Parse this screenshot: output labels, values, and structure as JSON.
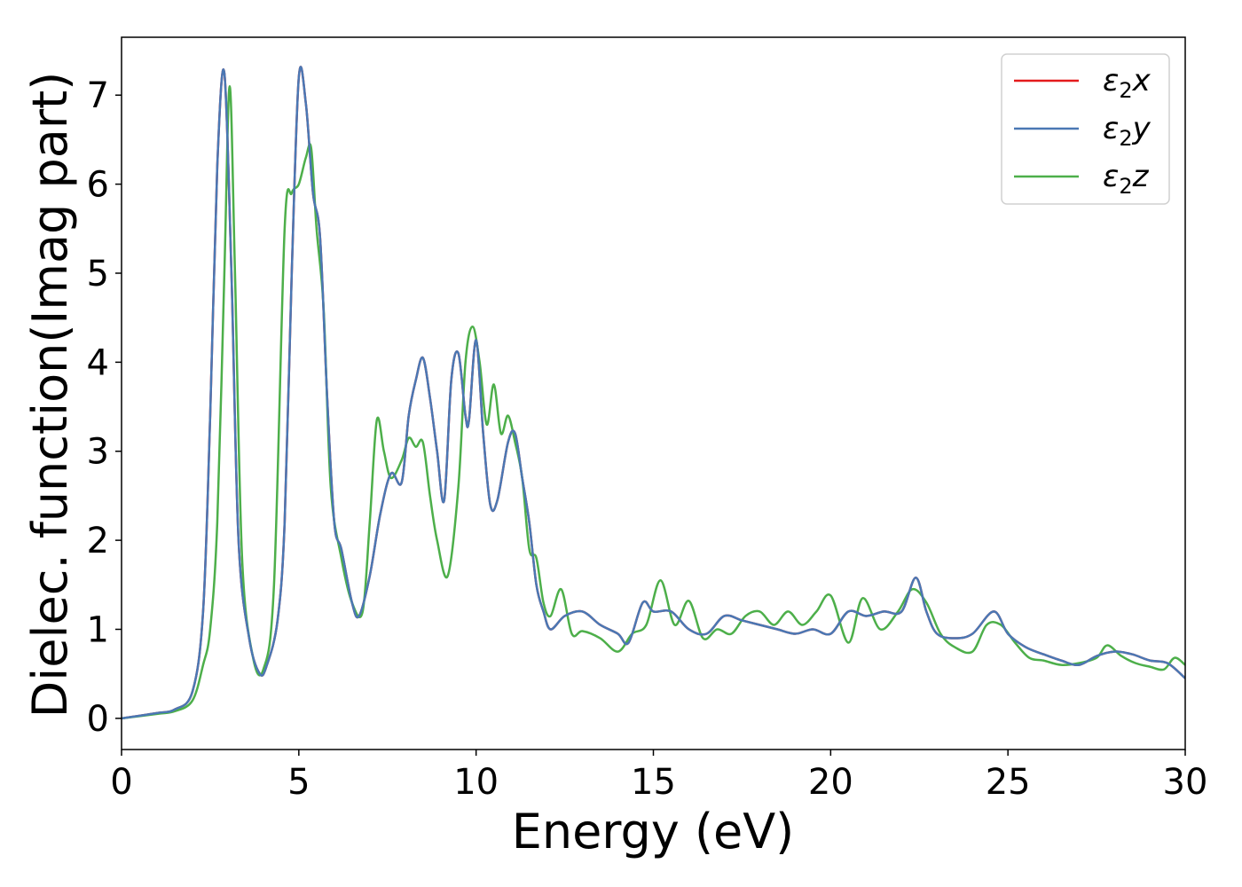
{
  "chart_data": {
    "type": "line",
    "title": "",
    "xlabel": "Energy (eV)",
    "ylabel": "Dielec. function(Imag part)",
    "xlim": [
      0,
      30
    ],
    "ylim": [
      -0.35,
      7.65
    ],
    "xticks": [
      0,
      5,
      10,
      15,
      20,
      25,
      30
    ],
    "yticks": [
      0,
      1,
      2,
      3,
      4,
      5,
      6,
      7
    ],
    "grid": false,
    "legend_position": "top-right",
    "series": [
      {
        "name": "ε₂x",
        "legend_base": "ε",
        "legend_sub": "2",
        "legend_axis": "x",
        "color": "#e41a1c",
        "x": [
          0,
          1,
          1.5,
          2,
          2.3,
          2.5,
          2.7,
          2.9,
          3.1,
          3.3,
          3.6,
          3.9,
          4.1,
          4.4,
          4.6,
          4.8,
          5.0,
          5.2,
          5.4,
          5.6,
          5.8,
          6.0,
          6.2,
          6.5,
          6.7,
          7.0,
          7.3,
          7.6,
          7.9,
          8.1,
          8.3,
          8.5,
          8.7,
          8.9,
          9.1,
          9.3,
          9.5,
          9.7,
          9.8,
          10.0,
          10.2,
          10.4,
          10.6,
          10.9,
          11.1,
          11.3,
          11.5,
          11.7,
          11.9,
          12.1,
          12.5,
          13.0,
          13.5,
          14.0,
          14.3,
          14.7,
          15.0,
          15.5,
          16.0,
          16.5,
          17.0,
          17.5,
          18.0,
          18.5,
          19.0,
          19.5,
          20.0,
          20.5,
          21.0,
          21.5,
          22.0,
          22.4,
          22.7,
          23.0,
          23.5,
          24.0,
          24.6,
          25.0,
          25.5,
          26.0,
          26.5,
          27.0,
          27.5,
          28.0,
          28.5,
          29.0,
          29.5,
          30.0
        ],
        "y": [
          0.0,
          0.06,
          0.1,
          0.3,
          1.2,
          3.4,
          6.2,
          7.25,
          5.0,
          2.0,
          0.9,
          0.5,
          0.6,
          1.1,
          2.2,
          5.0,
          7.2,
          6.9,
          5.9,
          5.4,
          3.6,
          2.2,
          1.9,
          1.3,
          1.15,
          1.6,
          2.3,
          2.75,
          2.65,
          3.4,
          3.8,
          4.05,
          3.6,
          3.0,
          2.45,
          3.8,
          4.1,
          3.4,
          3.35,
          4.25,
          3.2,
          2.4,
          2.45,
          3.1,
          3.2,
          2.7,
          2.2,
          1.5,
          1.2,
          1.0,
          1.15,
          1.2,
          1.05,
          0.95,
          0.85,
          1.3,
          1.2,
          1.2,
          1.0,
          0.95,
          1.15,
          1.1,
          1.05,
          1.0,
          0.95,
          1.0,
          0.95,
          1.2,
          1.15,
          1.2,
          1.2,
          1.58,
          1.2,
          0.95,
          0.9,
          0.95,
          1.2,
          0.95,
          0.8,
          0.72,
          0.65,
          0.6,
          0.7,
          0.75,
          0.72,
          0.65,
          0.62,
          0.45
        ]
      },
      {
        "name": "ε₂y",
        "legend_base": "ε",
        "legend_sub": "2",
        "legend_axis": "y",
        "color": "#4a78b4",
        "x": [
          0,
          1,
          1.5,
          2,
          2.3,
          2.5,
          2.7,
          2.9,
          3.1,
          3.3,
          3.6,
          3.9,
          4.1,
          4.4,
          4.6,
          4.8,
          5.0,
          5.2,
          5.4,
          5.6,
          5.8,
          6.0,
          6.2,
          6.5,
          6.7,
          7.0,
          7.3,
          7.6,
          7.9,
          8.1,
          8.3,
          8.5,
          8.7,
          8.9,
          9.1,
          9.3,
          9.5,
          9.7,
          9.8,
          10.0,
          10.2,
          10.4,
          10.6,
          10.9,
          11.1,
          11.3,
          11.5,
          11.7,
          11.9,
          12.1,
          12.5,
          13.0,
          13.5,
          14.0,
          14.3,
          14.7,
          15.0,
          15.5,
          16.0,
          16.5,
          17.0,
          17.5,
          18.0,
          18.5,
          19.0,
          19.5,
          20.0,
          20.5,
          21.0,
          21.5,
          22.0,
          22.4,
          22.7,
          23.0,
          23.5,
          24.0,
          24.6,
          25.0,
          25.5,
          26.0,
          26.5,
          27.0,
          27.5,
          28.0,
          28.5,
          29.0,
          29.5,
          30.0
        ],
        "y": [
          0.0,
          0.06,
          0.1,
          0.3,
          1.2,
          3.4,
          6.2,
          7.25,
          5.0,
          2.0,
          0.9,
          0.5,
          0.6,
          1.1,
          2.2,
          5.0,
          7.2,
          6.9,
          5.9,
          5.4,
          3.6,
          2.2,
          1.9,
          1.3,
          1.15,
          1.6,
          2.3,
          2.75,
          2.65,
          3.4,
          3.8,
          4.05,
          3.6,
          3.0,
          2.45,
          3.8,
          4.1,
          3.4,
          3.35,
          4.25,
          3.2,
          2.4,
          2.45,
          3.1,
          3.2,
          2.7,
          2.2,
          1.5,
          1.2,
          1.0,
          1.15,
          1.2,
          1.05,
          0.95,
          0.85,
          1.3,
          1.2,
          1.2,
          1.0,
          0.95,
          1.15,
          1.1,
          1.05,
          1.0,
          0.95,
          1.0,
          0.95,
          1.2,
          1.15,
          1.2,
          1.2,
          1.58,
          1.2,
          0.95,
          0.9,
          0.95,
          1.2,
          0.95,
          0.8,
          0.72,
          0.65,
          0.6,
          0.7,
          0.75,
          0.72,
          0.65,
          0.62,
          0.45
        ]
      },
      {
        "name": "ε₂z",
        "legend_base": "ε",
        "legend_sub": "2",
        "legend_axis": "z",
        "color": "#4daf4a",
        "x": [
          0,
          1,
          1.5,
          2,
          2.3,
          2.5,
          2.7,
          2.9,
          3.05,
          3.2,
          3.4,
          3.7,
          4.0,
          4.3,
          4.6,
          4.8,
          5.0,
          5.2,
          5.35,
          5.5,
          5.7,
          5.9,
          6.2,
          6.5,
          6.8,
          7.0,
          7.2,
          7.4,
          7.6,
          7.9,
          8.1,
          8.3,
          8.5,
          8.7,
          8.9,
          9.2,
          9.5,
          9.7,
          9.9,
          10.1,
          10.3,
          10.5,
          10.7,
          10.9,
          11.1,
          11.3,
          11.5,
          11.7,
          11.9,
          12.1,
          12.4,
          12.7,
          13.0,
          13.5,
          14.0,
          14.4,
          14.8,
          15.2,
          15.6,
          16.0,
          16.4,
          16.8,
          17.2,
          17.6,
          18.0,
          18.4,
          18.8,
          19.2,
          19.6,
          20.0,
          20.5,
          20.9,
          21.4,
          21.9,
          22.3,
          22.7,
          23.1,
          23.5,
          24.0,
          24.4,
          24.8,
          25.2,
          25.6,
          26.0,
          26.5,
          27.0,
          27.5,
          27.8,
          28.2,
          28.6,
          29.0,
          29.4,
          29.7,
          30.0
        ],
        "y": [
          0.0,
          0.05,
          0.08,
          0.2,
          0.6,
          1.0,
          2.2,
          5.0,
          7.1,
          5.0,
          1.8,
          0.7,
          0.55,
          1.5,
          5.5,
          5.9,
          6.0,
          6.3,
          6.4,
          5.5,
          4.6,
          2.6,
          1.8,
          1.3,
          1.2,
          2.2,
          3.35,
          3.0,
          2.7,
          2.9,
          3.15,
          3.05,
          3.1,
          2.5,
          2.0,
          1.6,
          2.6,
          4.0,
          4.4,
          4.0,
          3.3,
          3.75,
          3.2,
          3.4,
          3.1,
          2.7,
          1.9,
          1.8,
          1.3,
          1.15,
          1.45,
          0.95,
          0.98,
          0.9,
          0.75,
          0.95,
          1.05,
          1.55,
          1.05,
          1.32,
          0.9,
          1.0,
          0.95,
          1.15,
          1.2,
          1.05,
          1.2,
          1.05,
          1.2,
          1.38,
          0.85,
          1.35,
          1.0,
          1.2,
          1.45,
          1.3,
          0.95,
          0.8,
          0.75,
          1.05,
          1.05,
          0.85,
          0.68,
          0.65,
          0.6,
          0.62,
          0.68,
          0.82,
          0.7,
          0.62,
          0.58,
          0.55,
          0.68,
          0.6
        ]
      }
    ]
  }
}
